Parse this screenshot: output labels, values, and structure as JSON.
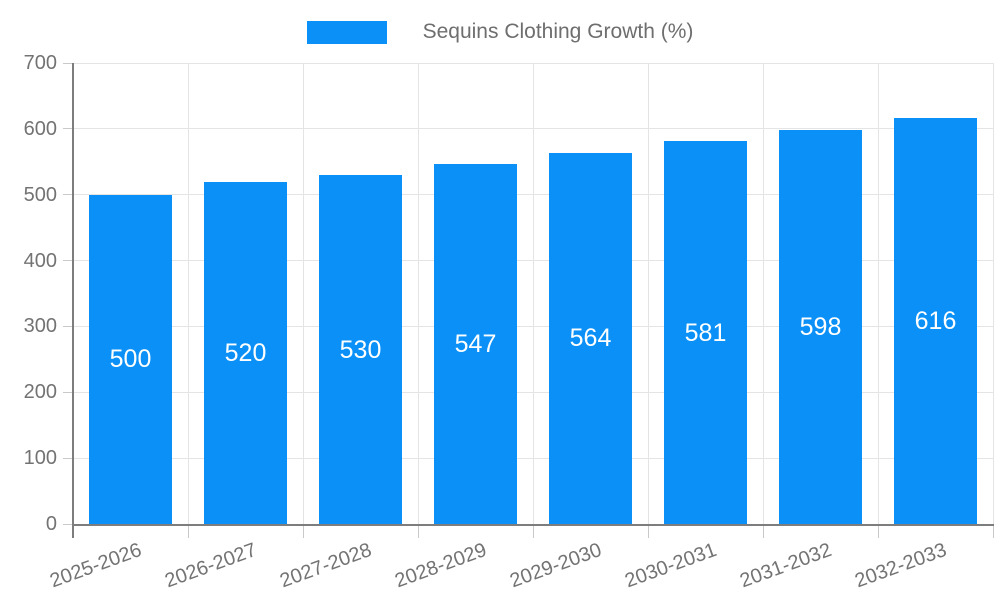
{
  "colors": {
    "bar": "#0A90F7",
    "grid": "#E4E4E4",
    "tick": "#C9C9C9",
    "axis": "#7D7D7D",
    "tick_label": "#737373",
    "legend_text": "#6E6E6E",
    "value_label": "#FFFFFF",
    "background": "#FFFFFF"
  },
  "chart_data": {
    "type": "bar",
    "title": "Sequins Clothing Growth (%)",
    "legend_entries": [
      "Sequins Clothing Growth (%)"
    ],
    "legend_position": "top",
    "categories": [
      "2025-2026",
      "2026-2027",
      "2027-2028",
      "2028-2029",
      "2029-2030",
      "2030-2031",
      "2031-2032",
      "2032-2033"
    ],
    "values": [
      500,
      520,
      530,
      547,
      564,
      581,
      598,
      616
    ],
    "value_labels": [
      "500",
      "520",
      "530",
      "547",
      "564",
      "581",
      "598",
      "616"
    ],
    "value_label_position": "inside-center",
    "xlabel": "",
    "ylabel": "",
    "ylim": [
      0,
      700
    ],
    "yticks": [
      0,
      100,
      200,
      300,
      400,
      500,
      600,
      700
    ],
    "grid": true,
    "x_tick_rotation_deg": -20
  }
}
